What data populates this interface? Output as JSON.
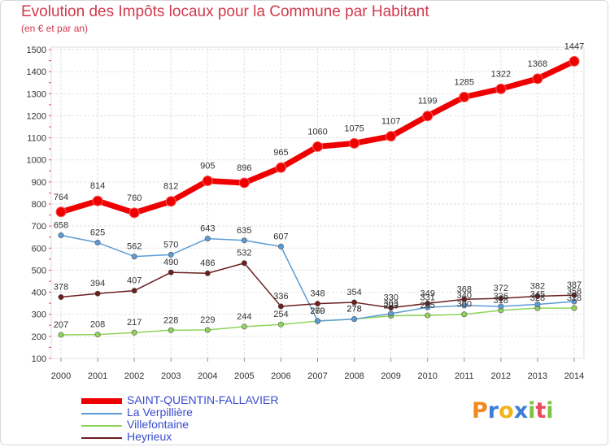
{
  "header": {
    "title": "Evolution des Impôts locaux pour la Commune par Habitant",
    "subtitle": "(en € et par an)"
  },
  "logo": {
    "text": "Proxiti"
  },
  "chart_data": {
    "type": "line",
    "x": [
      "2000",
      "2001",
      "2002",
      "2003",
      "2004",
      "2005",
      "2006",
      "2007",
      "2008",
      "2009",
      "2010",
      "2011",
      "2012",
      "2013",
      "2014"
    ],
    "ylim": [
      100,
      1500
    ],
    "yticks": [
      100,
      200,
      300,
      400,
      500,
      600,
      700,
      800,
      900,
      1000,
      1100,
      1200,
      1300,
      1400,
      1500
    ],
    "grid": true,
    "legend_position": "bottom",
    "series": [
      {
        "name": "SAINT-QUENTIN-FALLAVIER",
        "color": "#ee0000",
        "width": 7,
        "values": [
          764,
          814,
          760,
          812,
          905,
          896,
          965,
          1060,
          1075,
          1107,
          1199,
          1285,
          1322,
          1368,
          1447
        ]
      },
      {
        "name": "La Verpillière",
        "color": "#5b9bd5",
        "width": 1.5,
        "values": [
          658,
          625,
          562,
          570,
          643,
          635,
          607,
          270,
          278,
          303,
          331,
          340,
          336,
          345,
          358
        ]
      },
      {
        "name": "Villefontaine",
        "color": "#8fd45a",
        "width": 1.5,
        "values": [
          207,
          208,
          217,
          228,
          229,
          244,
          254,
          269,
          278,
          293,
          295,
          300,
          318,
          328,
          328
        ]
      },
      {
        "name": "Heyrieux",
        "color": "#6b1e1e",
        "width": 1.5,
        "values": [
          378,
          394,
          407,
          490,
          486,
          532,
          336,
          348,
          354,
          330,
          349,
          368,
          372,
          382,
          387
        ]
      }
    ],
    "data_labels": [
      {
        "series": 0,
        "values": [
          "764",
          "814",
          "760",
          "812",
          "905",
          "896",
          "965",
          "1060",
          "1075",
          "1107",
          "1199",
          "1285",
          "1322",
          "1368",
          "1447"
        ]
      },
      {
        "series": 1,
        "values": [
          "658",
          "625",
          "562",
          "570",
          "643",
          "635",
          "607",
          "270",
          "278",
          "303",
          "331",
          "340",
          "336",
          "345",
          "358"
        ]
      },
      {
        "series": 2,
        "values": [
          "207",
          "208",
          "217",
          "228",
          "229",
          "244",
          "254",
          "269",
          "278",
          "293",
          "295",
          "300",
          "318",
          "328",
          "328"
        ]
      },
      {
        "series": 3,
        "values": [
          "378",
          "394",
          "407",
          "490",
          "486",
          "532",
          "336",
          "348",
          "354",
          "330",
          "349",
          "368",
          "372",
          "382",
          "387"
        ]
      }
    ]
  }
}
